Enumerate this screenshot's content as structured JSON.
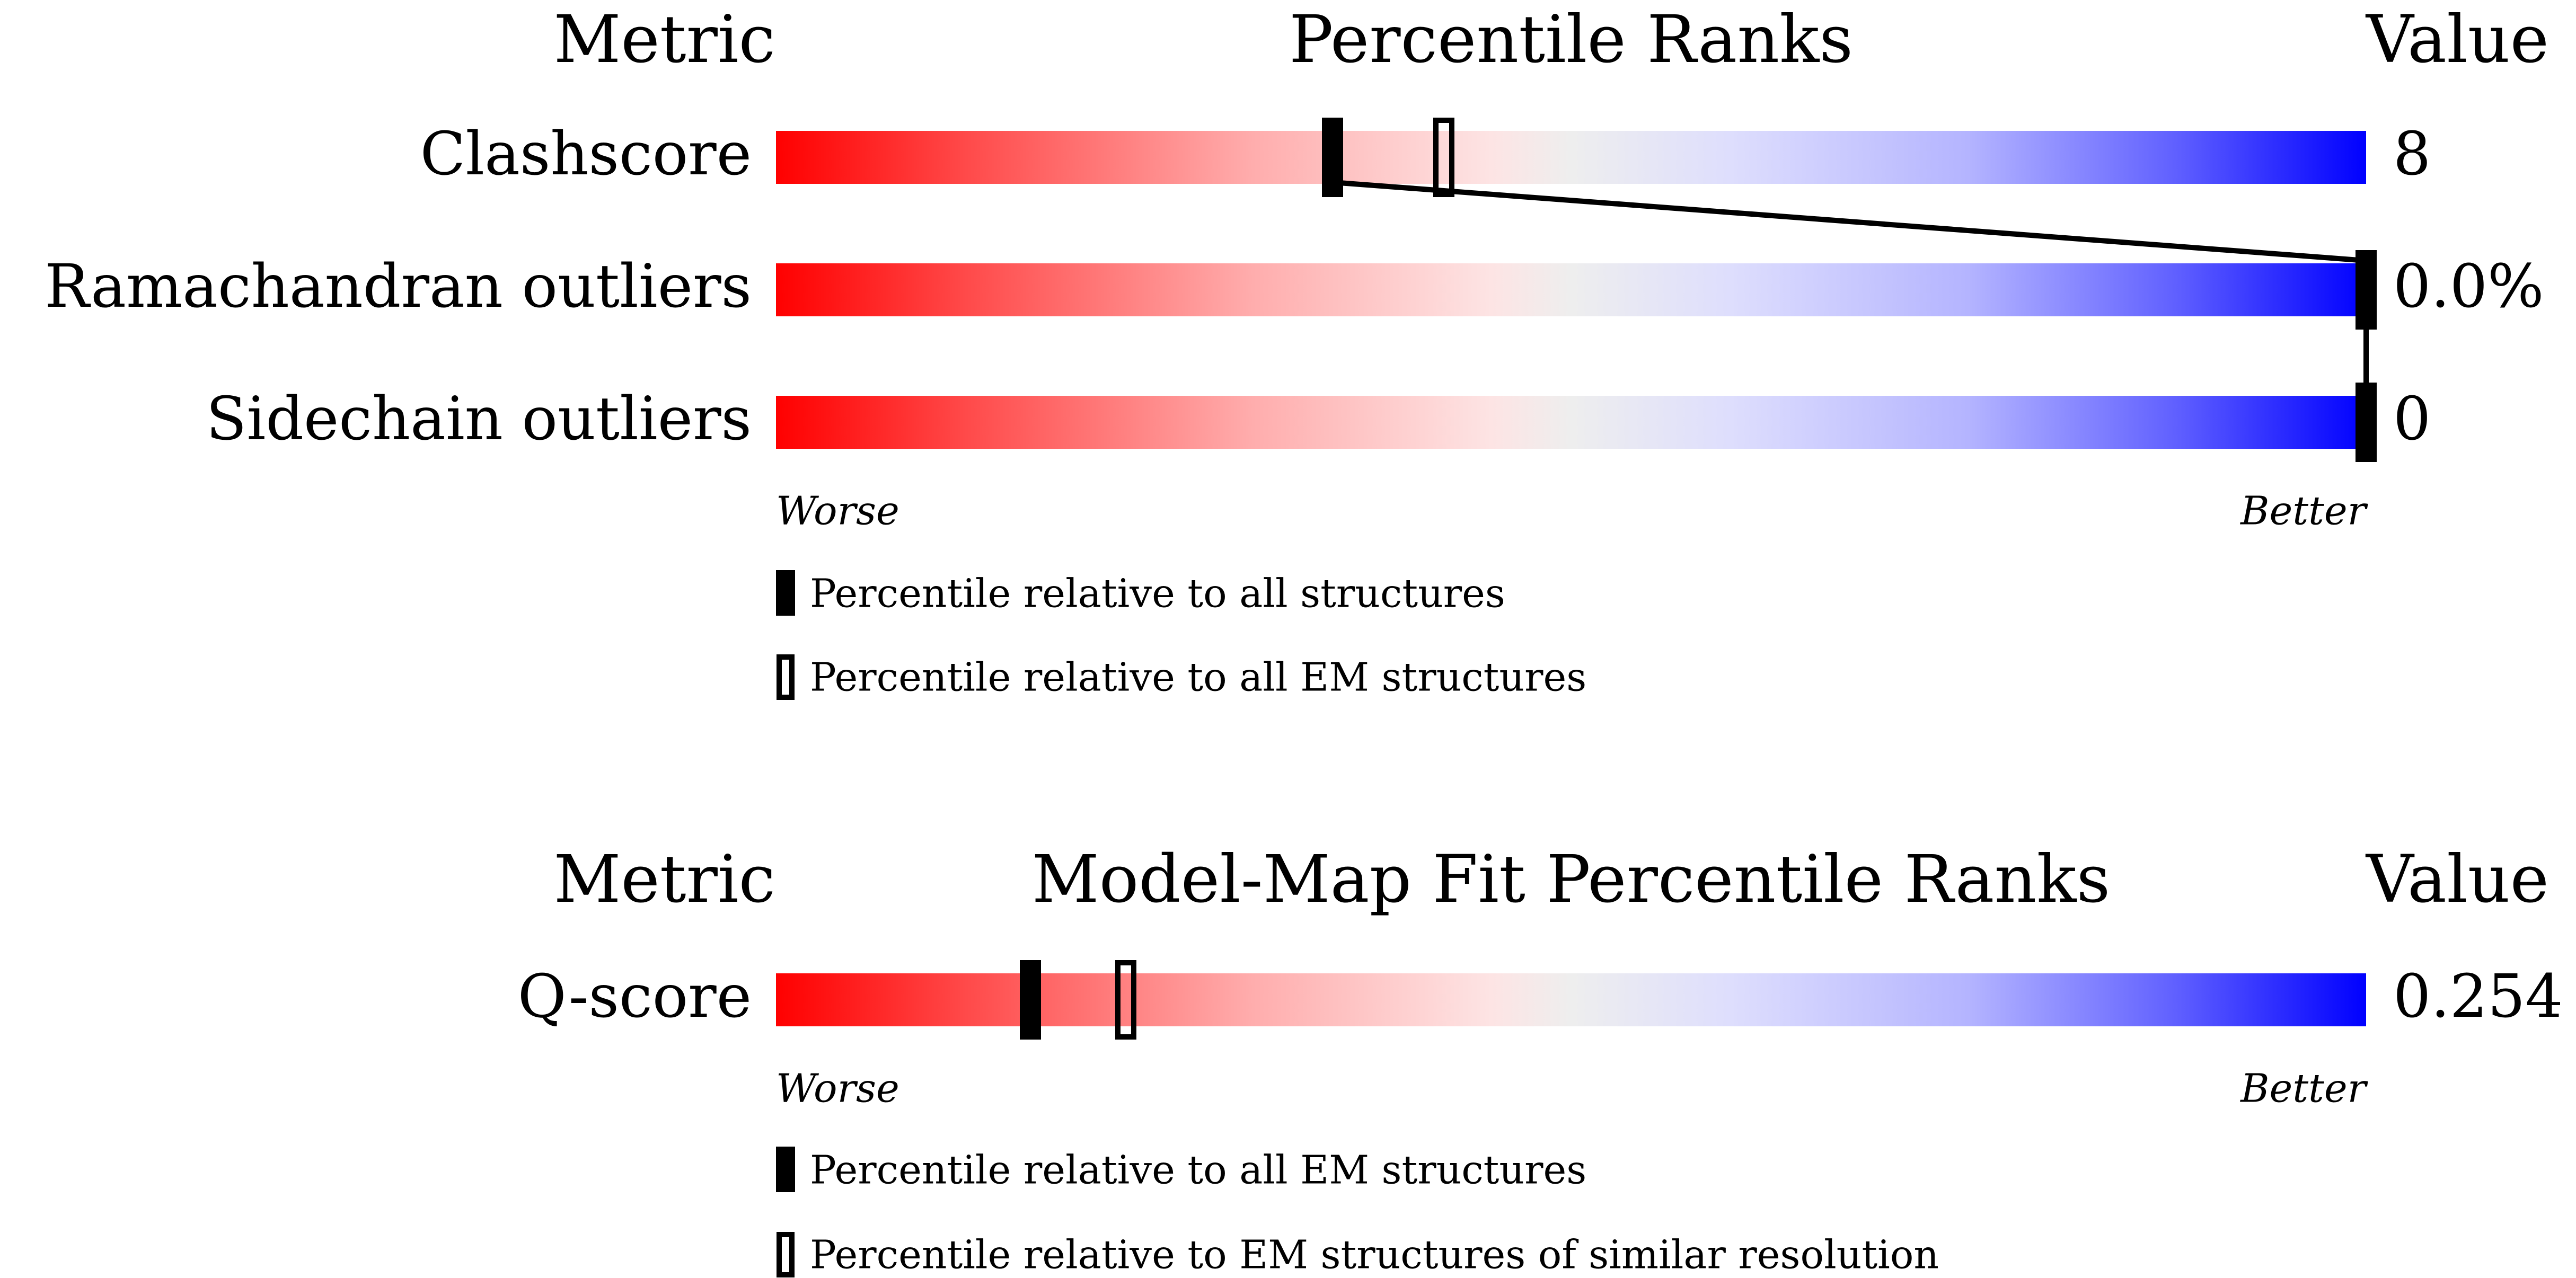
{
  "chart_data": [
    {
      "type": "percentile-bar",
      "header": {
        "metric": "Metric",
        "title": "Percentile Ranks",
        "value": "Value"
      },
      "axis": {
        "worse": "Worse",
        "better": "Better",
        "range": [
          0,
          100
        ]
      },
      "gradient_colors": [
        "#ff0000",
        "#eeeeee",
        "#0000ff"
      ],
      "rows": [
        {
          "metric": "Clashscore",
          "value": "8",
          "percentile_all": 35,
          "percentile_subset": 42
        },
        {
          "metric": "Ramachandran outliers",
          "value": "0.0%",
          "percentile_all": 100,
          "percentile_subset": null
        },
        {
          "metric": "Sidechain outliers",
          "value": "0",
          "percentile_all": 100,
          "percentile_subset": null
        }
      ],
      "legend": {
        "filled": "Percentile relative to all structures",
        "hollow": "Percentile relative to all EM structures"
      }
    },
    {
      "type": "percentile-bar",
      "header": {
        "metric": "Metric",
        "title": "Model-Map Fit Percentile Ranks",
        "value": "Value"
      },
      "axis": {
        "worse": "Worse",
        "better": "Better",
        "range": [
          0,
          100
        ]
      },
      "gradient_colors": [
        "#ff0000",
        "#eeeeee",
        "#0000ff"
      ],
      "rows": [
        {
          "metric": "Q-score",
          "value": "0.254",
          "percentile_all": 16,
          "percentile_subset": 22
        }
      ],
      "legend": {
        "filled": "Percentile relative to all EM structures",
        "hollow": "Percentile relative to EM structures of similar resolution"
      }
    }
  ]
}
